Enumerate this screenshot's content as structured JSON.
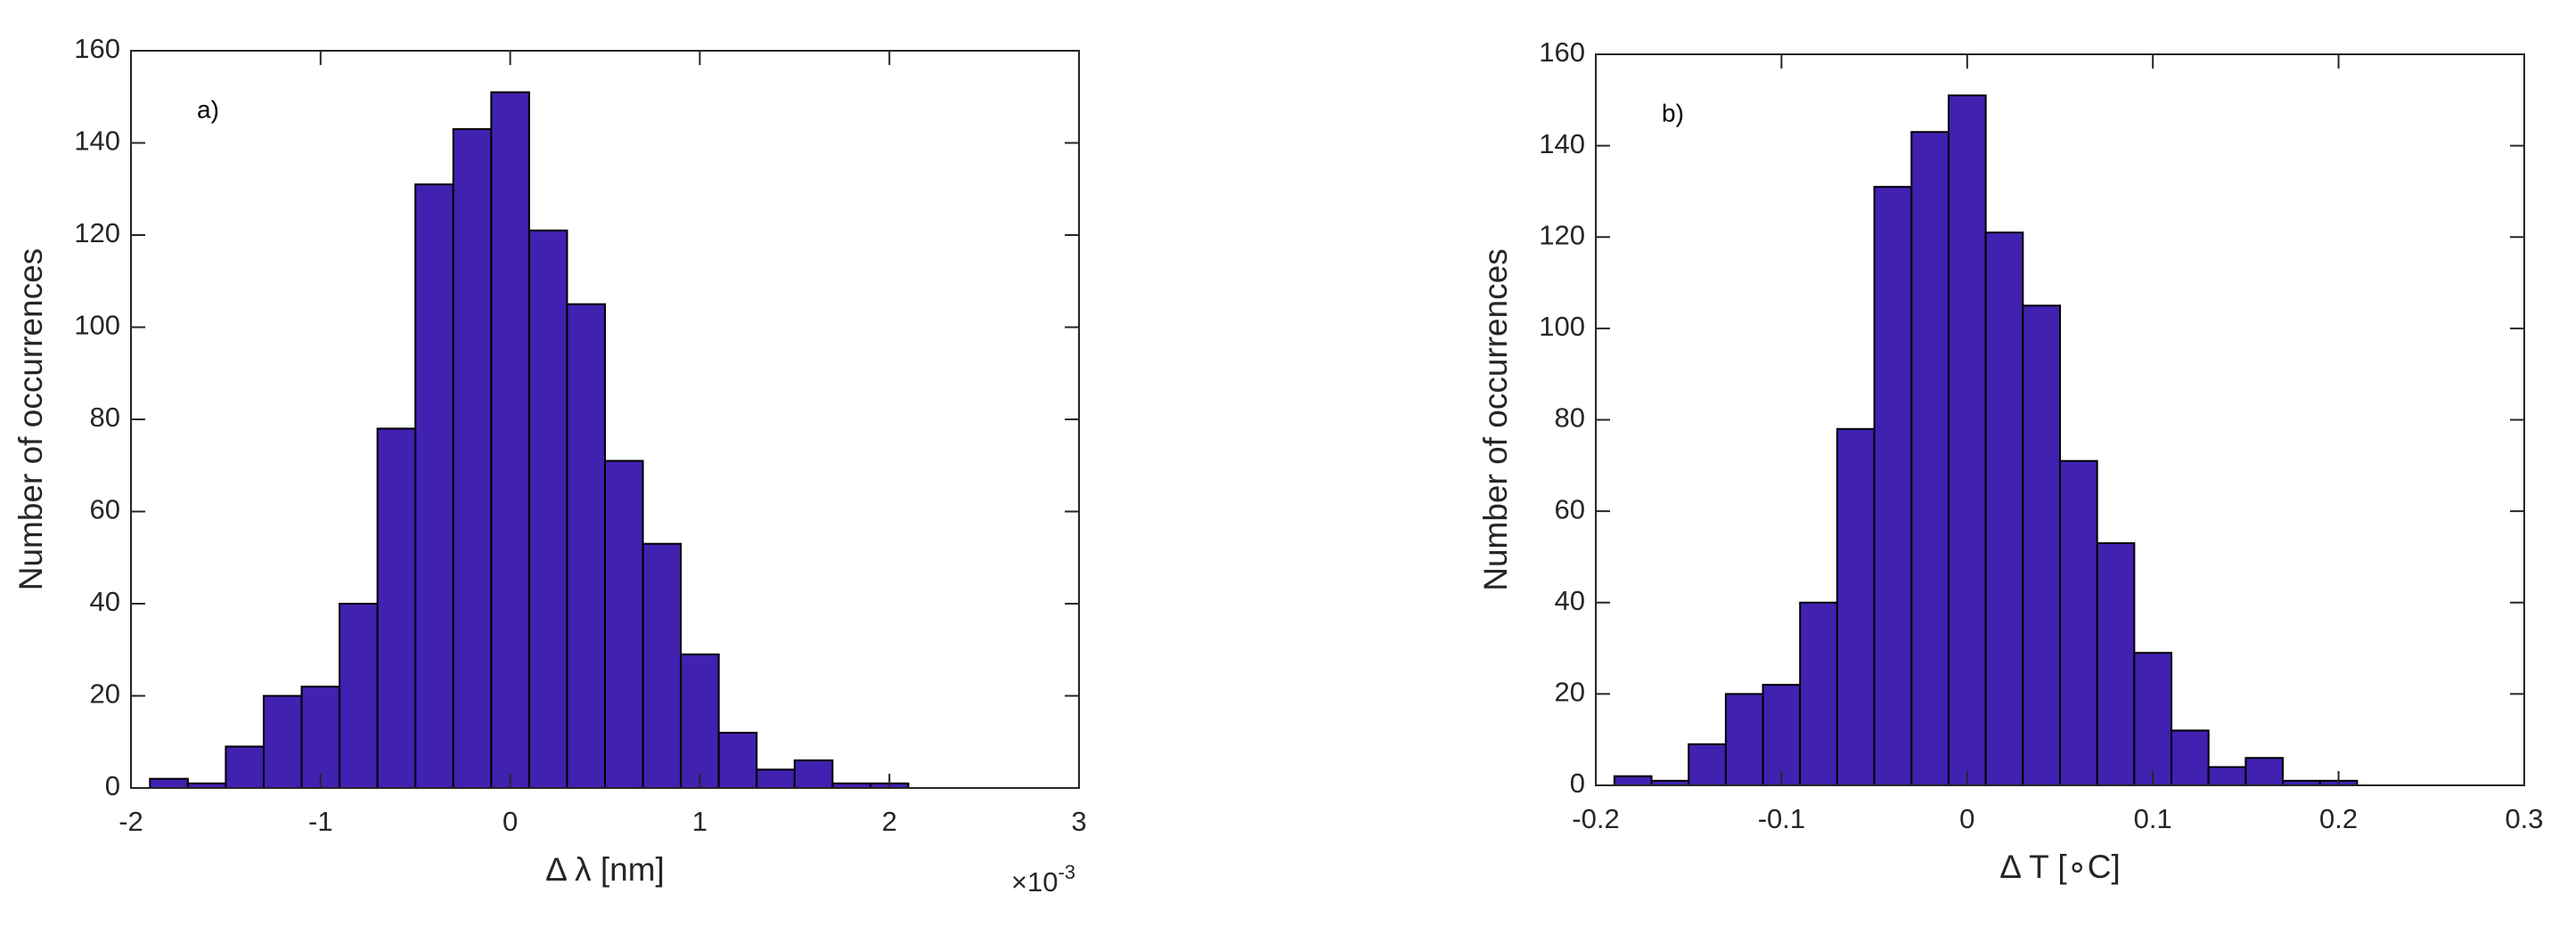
{
  "chart_data": [
    {
      "type": "histogram",
      "annotation": "a)",
      "xlabel": "Δ λ [nm]",
      "ylabel": "Number of occurrences",
      "x_exponent": {
        "base": "×10",
        "exponent": "-3"
      },
      "bins": [
        -1.9,
        -1.7,
        -1.5,
        -1.3,
        -1.1,
        -0.9,
        -0.7,
        -0.5,
        -0.3,
        -0.1,
        0.1,
        0.3,
        0.5,
        0.7,
        0.9,
        1.1,
        1.3,
        1.5,
        1.7,
        1.9,
        2.1
      ],
      "values": [
        2,
        1,
        9,
        20,
        22,
        40,
        78,
        131,
        143,
        151,
        121,
        105,
        71,
        53,
        29,
        12,
        4,
        6,
        1,
        1
      ],
      "color": "#4121b0",
      "edgecolor": "#000000",
      "xlim": [
        -2,
        3
      ],
      "xticks": [
        -2,
        -1,
        0,
        1,
        2,
        3
      ],
      "ylim": [
        0,
        160
      ],
      "yticks": [
        0,
        20,
        40,
        60,
        80,
        100,
        120,
        140,
        160
      ]
    },
    {
      "type": "histogram",
      "annotation": "b)",
      "xlabel": "Δ T [∘C]",
      "ylabel": "Number of occurrences",
      "bins": [
        -0.19,
        -0.17,
        -0.15,
        -0.13,
        -0.11,
        -0.09,
        -0.07,
        -0.05,
        -0.03,
        -0.01,
        0.01,
        0.03,
        0.05,
        0.07,
        0.09,
        0.11,
        0.13,
        0.15,
        0.17,
        0.19,
        0.21
      ],
      "values": [
        2,
        1,
        9,
        20,
        22,
        40,
        78,
        131,
        143,
        151,
        121,
        105,
        71,
        53,
        29,
        12,
        4,
        6,
        1,
        1
      ],
      "color": "#4121b0",
      "edgecolor": "#000000",
      "xlim": [
        -0.2,
        0.3
      ],
      "xticks": [
        -0.2,
        -0.1,
        0,
        0.1,
        0.2,
        0.3
      ],
      "ylim": [
        0,
        160
      ],
      "yticks": [
        0,
        20,
        40,
        60,
        80,
        100,
        120,
        140,
        160
      ]
    }
  ]
}
